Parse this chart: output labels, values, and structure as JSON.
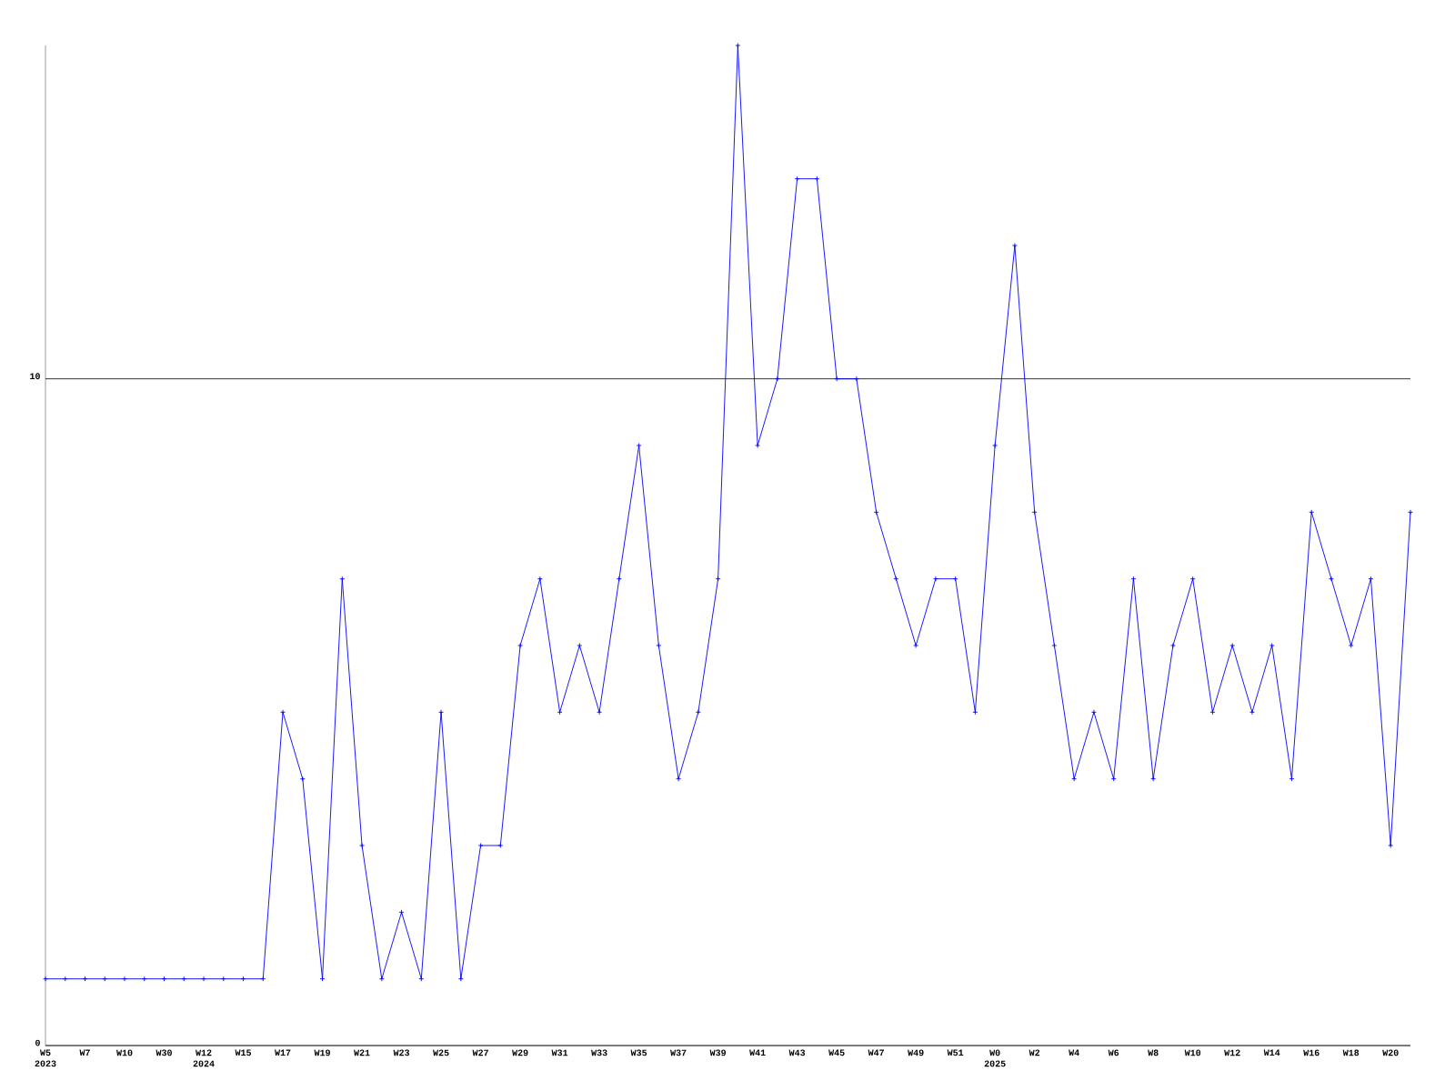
{
  "chart_data": {
    "type": "line",
    "categories": [
      "W5 2023",
      null,
      "W7",
      null,
      "W10",
      null,
      "W30",
      null,
      "W12 2024",
      null,
      "W15",
      null,
      "W17",
      null,
      "W19",
      null,
      "W21",
      null,
      "W23",
      null,
      "W25",
      null,
      "W27",
      null,
      "W29",
      null,
      "W31",
      null,
      "W33",
      null,
      "W35",
      null,
      "W37",
      null,
      "W39",
      null,
      "W41",
      null,
      "W43",
      null,
      "W45",
      null,
      "W47",
      null,
      "W49",
      null,
      "W51",
      null,
      "W0 2025",
      null,
      "W2",
      null,
      "W4",
      null,
      "W6",
      null,
      "W8",
      null,
      "W10",
      null,
      "W12",
      null,
      "W14",
      null,
      "W16",
      null,
      "W18",
      null,
      "W20",
      null
    ],
    "values": [
      1,
      1,
      1,
      1,
      1,
      1,
      1,
      1,
      1,
      1,
      1,
      1,
      5,
      4,
      1,
      7,
      3,
      1,
      2,
      1,
      5,
      1,
      3,
      3,
      6,
      7,
      5,
      6,
      5,
      7,
      9,
      6,
      4,
      5,
      7,
      15,
      9,
      10,
      13,
      13,
      10,
      10,
      8,
      7,
      6,
      7,
      7,
      5,
      9,
      12,
      8,
      6,
      4,
      5,
      4,
      7,
      4,
      6,
      7,
      5,
      6,
      5,
      6,
      4,
      8,
      7,
      6,
      7,
      3,
      8
    ],
    "color": "#0000ff",
    "marker": "cross",
    "line_style": "solid",
    "ylim": [
      0,
      15
    ],
    "yticks": [
      0,
      10
    ],
    "grid": "y"
  }
}
